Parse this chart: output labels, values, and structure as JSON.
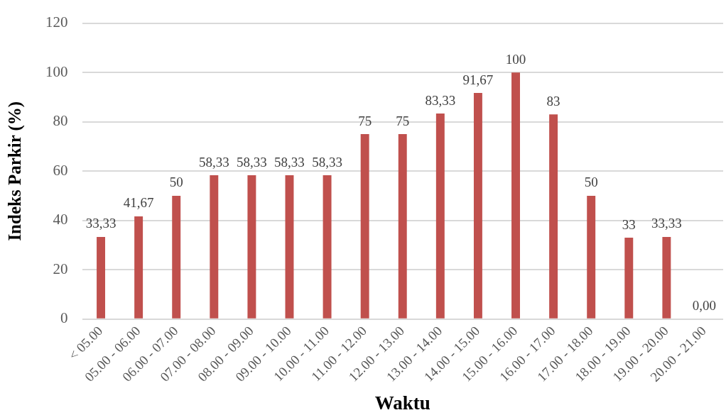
{
  "chart_data": {
    "type": "bar",
    "xlabel": "Waktu",
    "ylabel": "Indeks Parkir (%)",
    "categories": [
      "< 05.00",
      "05.00 - 06.00",
      "06.00 - 07.00",
      "07.00 - 08.00",
      "08.00 - 09.00",
      "09.00 - 10.00",
      "10.00 - 11.00",
      "11.00 - 12.00",
      "12.00 - 13.00",
      "13.00 - 14.00",
      "14.00 - 15.00",
      "15.00 - 16.00",
      "16.00 - 17.00",
      "17.00 - 18.00",
      "18.00 - 19.00",
      "19.00 - 20.00",
      "20.00 - 21.00"
    ],
    "values": [
      33.33,
      41.67,
      50,
      58.33,
      58.33,
      58.33,
      58.33,
      75,
      75,
      83.33,
      91.67,
      100,
      83,
      50,
      33,
      33.33,
      0
    ],
    "value_labels": [
      "33,33",
      "41,67",
      "50",
      "58,33",
      "58,33",
      "58,33",
      "58,33",
      "75",
      "75",
      "83,33",
      "91,67",
      "100",
      "83",
      "50",
      "33",
      "33,33",
      "0,00"
    ],
    "color": "#c0504d",
    "ylim": [
      0,
      120
    ],
    "yticks": [
      0,
      20,
      40,
      60,
      80,
      100,
      120
    ],
    "grid": "y"
  }
}
